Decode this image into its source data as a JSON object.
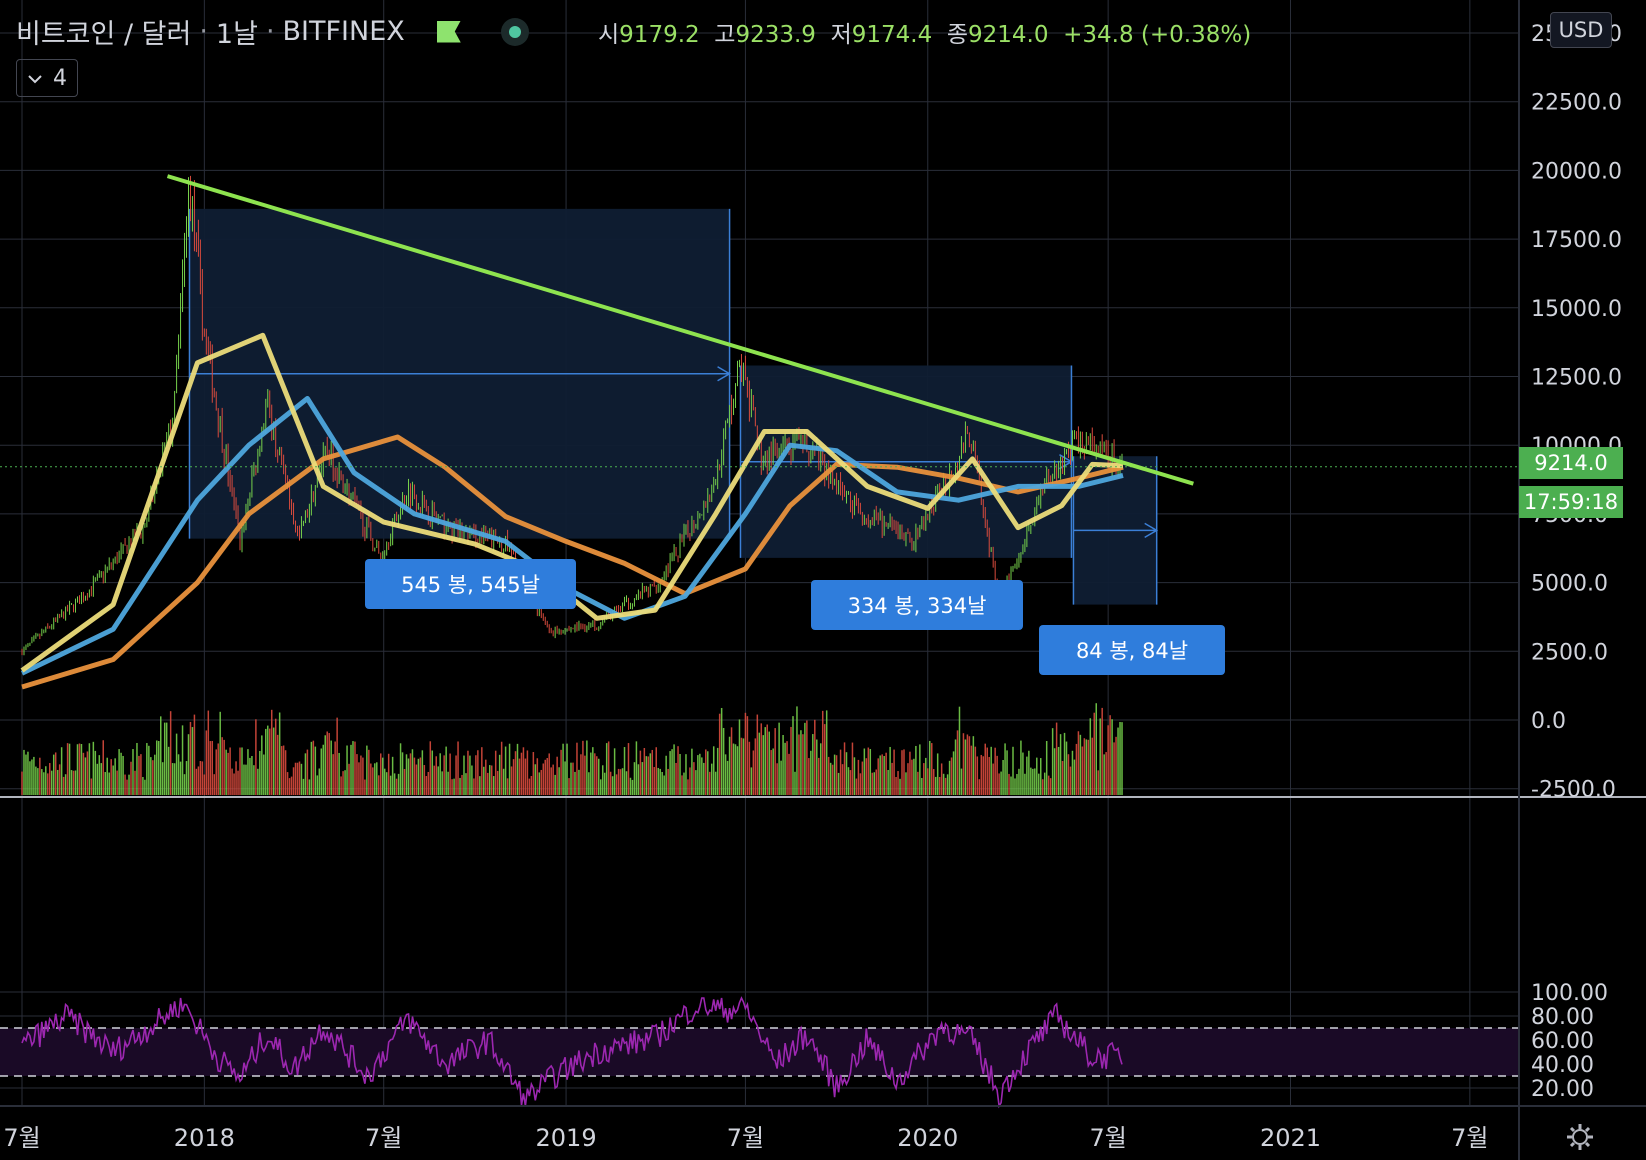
{
  "header": {
    "symbol": "비트코인 / 달러",
    "interval": "1날",
    "exchange": "BITFINEX",
    "ohlc": {
      "o_label": "시",
      "o": "9179.2",
      "h_label": "고",
      "h": "9233.9",
      "l_label": "저",
      "l": "9174.4",
      "c_label": "종",
      "c": "9214.0",
      "change": "+34.8 (+0.38%)"
    },
    "indicator_count": "4"
  },
  "currency_button": "USD",
  "last_price_tag": "9214.0",
  "countdown_tag": "17:59:18",
  "annotations": [
    "545 봉, 545날",
    "334 봉, 334날",
    "84 봉, 84날"
  ],
  "colors": {
    "background": "#000000",
    "grid": "#2a2e39",
    "trendline": "#8ee34f",
    "ma_fast": "#ecdc7a",
    "ma_mid": "#4ea7dd",
    "ma_slow": "#e9913c",
    "rsi": "#9c27b0",
    "rsi_band": "#1a0a26",
    "up": "#76d04b",
    "down": "#d94b3d",
    "range_box": "#0f1e33",
    "annotation": "#2f7ddc"
  },
  "icons": {
    "settings": "gear-icon",
    "chevron": "chevron-down-icon"
  },
  "chart_data": [
    {
      "type": "line",
      "title": "비트코인 / 달러 · 1날 · BITFINEX",
      "x_ticks": [
        "7월",
        "2018",
        "7월",
        "2019",
        "7월",
        "2020",
        "7월",
        "2021",
        "7월"
      ],
      "y_ticks": [
        "-2500.0",
        "0.0",
        "2500.0",
        "5000.0",
        "7500.0",
        "10000.0",
        "12500.0",
        "15000.0",
        "17500.0",
        "20000.0",
        "22500.0",
        "25000.0"
      ],
      "ylim": [
        -2500,
        25000
      ],
      "last_price": 9214.0,
      "price_series": [
        [
          "2017-07-01",
          2500
        ],
        [
          "2017-09-01",
          4500
        ],
        [
          "2017-11-01",
          7000
        ],
        [
          "2017-12-01",
          11000
        ],
        [
          "2017-12-17",
          19600
        ],
        [
          "2018-01-01",
          14000
        ],
        [
          "2018-02-06",
          6500
        ],
        [
          "2018-03-05",
          11500
        ],
        [
          "2018-04-06",
          6600
        ],
        [
          "2018-05-05",
          9800
        ],
        [
          "2018-06-28",
          5900
        ],
        [
          "2018-07-25",
          8400
        ],
        [
          "2018-09-01",
          7000
        ],
        [
          "2018-11-01",
          6400
        ],
        [
          "2018-12-15",
          3200
        ],
        [
          "2019-02-01",
          3500
        ],
        [
          "2019-04-05",
          5000
        ],
        [
          "2019-05-30",
          8500
        ],
        [
          "2019-06-26",
          13000
        ],
        [
          "2019-07-17",
          9500
        ],
        [
          "2019-09-01",
          10000
        ],
        [
          "2019-10-25",
          7500
        ],
        [
          "2019-12-18",
          6500
        ],
        [
          "2020-02-13",
          10400
        ],
        [
          "2020-03-13",
          4200
        ],
        [
          "2020-05-01",
          8800
        ],
        [
          "2020-06-01",
          10200
        ],
        [
          "2020-07-16",
          9214
        ]
      ],
      "series": [
        {
          "values": [
            [
              "2017-07-01",
              1800
            ],
            [
              "2017-10-01",
              4200
            ],
            [
              "2017-12-25",
              13000
            ],
            [
              "2018-03-01",
              14000
            ],
            [
              "2018-05-01",
              8500
            ],
            [
              "2018-07-01",
              7200
            ],
            [
              "2018-10-01",
              6400
            ],
            [
              "2018-12-01",
              5500
            ],
            [
              "2019-02-01",
              3700
            ],
            [
              "2019-04-01",
              4000
            ],
            [
              "2019-06-01",
              7500
            ],
            [
              "2019-07-20",
              10500
            ],
            [
              "2019-09-01",
              10500
            ],
            [
              "2019-11-01",
              8500
            ],
            [
              "2020-01-01",
              7700
            ],
            [
              "2020-02-15",
              9500
            ],
            [
              "2020-04-01",
              7000
            ],
            [
              "2020-05-15",
              7800
            ],
            [
              "2020-06-15",
              9300
            ],
            [
              "2020-07-16",
              9250
            ]
          ]
        },
        {
          "values": [
            [
              "2017-07-01",
              1700
            ],
            [
              "2017-10-01",
              3300
            ],
            [
              "2017-12-25",
              8000
            ],
            [
              "2018-02-15",
              10000
            ],
            [
              "2018-04-15",
              11700
            ],
            [
              "2018-06-01",
              9000
            ],
            [
              "2018-08-01",
              7500
            ],
            [
              "2018-11-01",
              6500
            ],
            [
              "2019-01-01",
              4800
            ],
            [
              "2019-03-01",
              3700
            ],
            [
              "2019-05-01",
              4500
            ],
            [
              "2019-07-01",
              7500
            ],
            [
              "2019-08-15",
              10000
            ],
            [
              "2019-10-01",
              9800
            ],
            [
              "2019-12-01",
              8300
            ],
            [
              "2020-02-01",
              8000
            ],
            [
              "2020-04-01",
              8500
            ],
            [
              "2020-06-01",
              8500
            ],
            [
              "2020-07-16",
              8900
            ]
          ]
        },
        {
          "values": [
            [
              "2017-07-01",
              1200
            ],
            [
              "2017-10-01",
              2200
            ],
            [
              "2017-12-25",
              5000
            ],
            [
              "2018-02-15",
              7500
            ],
            [
              "2018-05-01",
              9500
            ],
            [
              "2018-07-15",
              10300
            ],
            [
              "2018-09-01",
              9200
            ],
            [
              "2018-11-01",
              7400
            ],
            [
              "2019-01-01",
              6500
            ],
            [
              "2019-03-01",
              5700
            ],
            [
              "2019-05-01",
              4600
            ],
            [
              "2019-07-01",
              5500
            ],
            [
              "2019-08-15",
              7800
            ],
            [
              "2019-10-01",
              9300
            ],
            [
              "2019-12-01",
              9200
            ],
            [
              "2020-02-01",
              8800
            ],
            [
              "2020-04-01",
              8300
            ],
            [
              "2020-06-01",
              8800
            ],
            [
              "2020-07-16",
              9200
            ]
          ]
        }
      ],
      "trendline": [
        [
          "2017-12-17",
          19500
        ],
        [
          "2020-09-25",
          8600
        ]
      ]
    },
    {
      "type": "line",
      "y_ticks": [
        "20.00",
        "40.00",
        "60.00",
        "80.00",
        "100.00"
      ],
      "ylim": [
        0,
        100
      ],
      "band": [
        30,
        70
      ],
      "series": [
        {
          "values": [
            [
              "2017-07-01",
              55
            ],
            [
              "2017-08-15",
              80
            ],
            [
              "2017-10-01",
              50
            ],
            [
              "2017-11-15",
              75
            ],
            [
              "2017-12-10",
              92
            ],
            [
              "2018-01-15",
              45
            ],
            [
              "2018-02-06",
              28
            ],
            [
              "2018-03-05",
              65
            ],
            [
              "2018-04-01",
              35
            ],
            [
              "2018-05-01",
              72
            ],
            [
              "2018-06-15",
              30
            ],
            [
              "2018-07-25",
              78
            ],
            [
              "2018-09-01",
              40
            ],
            [
              "2018-10-15",
              60
            ],
            [
              "2018-11-20",
              10
            ],
            [
              "2018-12-20",
              30
            ],
            [
              "2019-02-01",
              50
            ],
            [
              "2019-04-01",
              62
            ],
            [
              "2019-05-15",
              90
            ],
            [
              "2019-06-10",
              85
            ],
            [
              "2019-07-01",
              88
            ],
            [
              "2019-08-01",
              40
            ],
            [
              "2019-09-01",
              65
            ],
            [
              "2019-10-01",
              20
            ],
            [
              "2019-11-01",
              60
            ],
            [
              "2019-12-01",
              25
            ],
            [
              "2020-01-15",
              72
            ],
            [
              "2020-02-15",
              60
            ],
            [
              "2020-03-13",
              15
            ],
            [
              "2020-04-15",
              55
            ],
            [
              "2020-05-10",
              80
            ],
            [
              "2020-06-15",
              45
            ],
            [
              "2020-07-16",
              48
            ]
          ]
        }
      ]
    }
  ]
}
